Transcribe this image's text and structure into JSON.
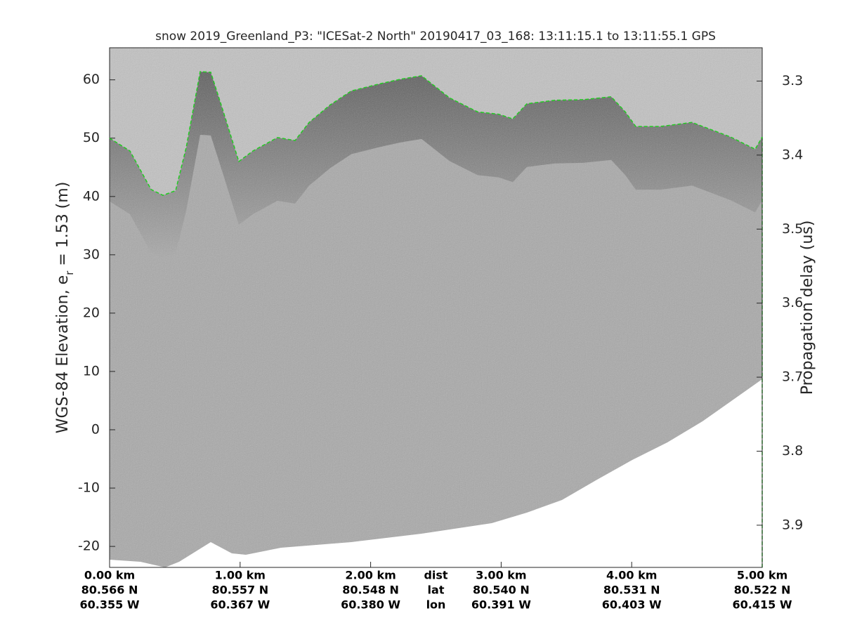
{
  "chart_data": {
    "type": "line",
    "title": "snow 2019_Greenland_P3: \"ICESat-2 North\"  20190417_03_168: 13:11:15.1 to 13:11:55.1 GPS",
    "ylabel": [
      "WGS-84 Elevation, e",
      "r",
      " = 1.53 (m)"
    ],
    "y2label": "Propagation delay (us)",
    "xlim": [
      0,
      5
    ],
    "ylim": [
      -23.6,
      65.5
    ],
    "yticks": [
      -20,
      -10,
      0,
      10,
      20,
      30,
      40,
      50,
      60
    ],
    "y2lim": [
      3.255,
      3.957
    ],
    "y2_inverted": true,
    "y2ticks": [
      3.3,
      3.4,
      3.5,
      3.6,
      3.7,
      3.8,
      3.9
    ],
    "xticks": [
      {
        "value": 0,
        "label": "0.00 km"
      },
      {
        "value": 1,
        "label": "1.00 km"
      },
      {
        "value": 2,
        "label": "2.00 km"
      },
      {
        "value": 3,
        "label": "3.00 km"
      },
      {
        "value": 4,
        "label": "4.00 km"
      },
      {
        "value": 5,
        "label": "5.00 km"
      }
    ],
    "x_row_names": [
      "dist",
      "lat",
      "lon"
    ],
    "lat_labels": [
      "80.566 N",
      "80.557 N",
      "80.548 N",
      "80.540 N",
      "80.531 N",
      "80.522 N"
    ],
    "lon_labels": [
      "60.355 W",
      "60.367 W",
      "60.380 W",
      "60.391 W",
      "60.403 W",
      "60.415 W"
    ],
    "series": [
      {
        "color": "#22cc22",
        "x": [
          0,
          0.156,
          0.318,
          0.409,
          0.506,
          0.587,
          0.694,
          0.775,
          0.872,
          0.99,
          1.098,
          1.286,
          1.421,
          1.529,
          1.69,
          1.852,
          2.067,
          2.228,
          2.39,
          2.605,
          2.82,
          2.982,
          3.089,
          3.197,
          3.412,
          3.628,
          3.843,
          3.951,
          4.031,
          4.22,
          4.462,
          4.758,
          4.946,
          5.0
        ],
        "values": [
          50.0,
          47.8,
          41.2,
          40.2,
          41.0,
          48.4,
          61.4,
          61.3,
          54.5,
          46.0,
          47.8,
          50.1,
          49.6,
          52.7,
          55.7,
          58.1,
          59.3,
          60.1,
          60.7,
          56.9,
          54.5,
          54.1,
          53.3,
          55.9,
          56.5,
          56.6,
          57.1,
          54.5,
          52.0,
          52.0,
          52.7,
          50.2,
          48.1,
          50.2
        ]
      }
    ]
  }
}
